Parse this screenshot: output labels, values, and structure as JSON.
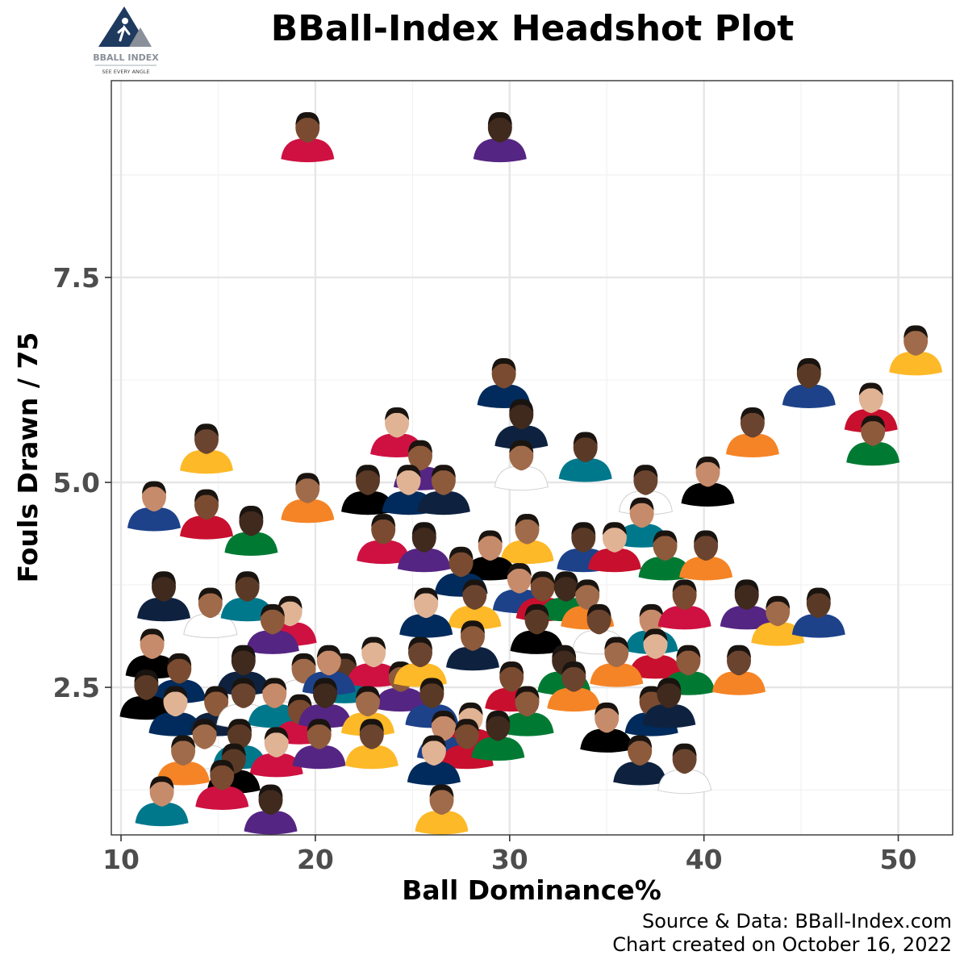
{
  "logo": {
    "name": "BBALL INDEX",
    "tagline": "SEE EVERY ANGLE"
  },
  "chart_data": {
    "type": "scatter",
    "title": "BBall-Index Headshot Plot",
    "xlabel": "Ball Dominance%",
    "ylabel": "Fouls Drawn / 75",
    "xlim": [
      9.5,
      52.8
    ],
    "ylim": [
      0.7,
      9.9
    ],
    "x_ticks": [
      10,
      20,
      30,
      40,
      50
    ],
    "y_ticks": [
      2.5,
      5.0,
      7.5
    ],
    "x_tick_labels": [
      "10",
      "20",
      "30",
      "40",
      "50"
    ],
    "y_tick_labels": [
      "2.5",
      "5.0",
      "7.5"
    ],
    "grid": true,
    "marker": "player headshot",
    "points": [
      {
        "x": 19.6,
        "y": 9.2
      },
      {
        "x": 29.5,
        "y": 9.2
      },
      {
        "x": 50.9,
        "y": 6.6
      },
      {
        "x": 45.4,
        "y": 6.2
      },
      {
        "x": 48.6,
        "y": 5.9
      },
      {
        "x": 48.7,
        "y": 5.5
      },
      {
        "x": 42.5,
        "y": 5.6
      },
      {
        "x": 40.2,
        "y": 5.0
      },
      {
        "x": 29.7,
        "y": 6.2
      },
      {
        "x": 30.6,
        "y": 5.7
      },
      {
        "x": 30.6,
        "y": 5.2
      },
      {
        "x": 33.9,
        "y": 5.3
      },
      {
        "x": 24.2,
        "y": 5.6
      },
      {
        "x": 25.4,
        "y": 5.2
      },
      {
        "x": 14.4,
        "y": 5.4
      },
      {
        "x": 11.7,
        "y": 4.7
      },
      {
        "x": 14.4,
        "y": 4.6
      },
      {
        "x": 16.7,
        "y": 4.4
      },
      {
        "x": 19.6,
        "y": 4.8
      },
      {
        "x": 22.7,
        "y": 4.9
      },
      {
        "x": 24.8,
        "y": 4.9
      },
      {
        "x": 26.6,
        "y": 4.9
      },
      {
        "x": 37.0,
        "y": 4.9
      },
      {
        "x": 36.8,
        "y": 4.5
      },
      {
        "x": 23.5,
        "y": 4.3
      },
      {
        "x": 25.6,
        "y": 4.2
      },
      {
        "x": 30.9,
        "y": 4.3
      },
      {
        "x": 33.8,
        "y": 4.2
      },
      {
        "x": 35.4,
        "y": 4.2
      },
      {
        "x": 38.0,
        "y": 4.1
      },
      {
        "x": 40.1,
        "y": 4.1
      },
      {
        "x": 29.0,
        "y": 4.1
      },
      {
        "x": 27.5,
        "y": 3.9
      },
      {
        "x": 12.2,
        "y": 3.6
      },
      {
        "x": 14.6,
        "y": 3.4
      },
      {
        "x": 16.5,
        "y": 3.6
      },
      {
        "x": 18.7,
        "y": 3.3
      },
      {
        "x": 17.8,
        "y": 3.2
      },
      {
        "x": 28.2,
        "y": 3.5
      },
      {
        "x": 30.5,
        "y": 3.7
      },
      {
        "x": 31.7,
        "y": 3.6
      },
      {
        "x": 32.9,
        "y": 3.6
      },
      {
        "x": 34.0,
        "y": 3.5
      },
      {
        "x": 31.4,
        "y": 3.2
      },
      {
        "x": 25.7,
        "y": 3.4
      },
      {
        "x": 28.1,
        "y": 3.0
      },
      {
        "x": 34.6,
        "y": 3.2
      },
      {
        "x": 37.3,
        "y": 3.2
      },
      {
        "x": 39.0,
        "y": 3.5
      },
      {
        "x": 42.2,
        "y": 3.5
      },
      {
        "x": 43.8,
        "y": 3.3
      },
      {
        "x": 45.9,
        "y": 3.4
      },
      {
        "x": 37.5,
        "y": 2.9
      },
      {
        "x": 39.2,
        "y": 2.7
      },
      {
        "x": 41.8,
        "y": 2.7
      },
      {
        "x": 11.6,
        "y": 2.9
      },
      {
        "x": 13.0,
        "y": 2.6
      },
      {
        "x": 16.3,
        "y": 2.7
      },
      {
        "x": 19.4,
        "y": 2.6
      },
      {
        "x": 21.5,
        "y": 2.6
      },
      {
        "x": 23.0,
        "y": 2.8
      },
      {
        "x": 24.4,
        "y": 2.5
      },
      {
        "x": 25.4,
        "y": 2.8
      },
      {
        "x": 20.7,
        "y": 2.7
      },
      {
        "x": 30.1,
        "y": 2.5
      },
      {
        "x": 32.8,
        "y": 2.7
      },
      {
        "x": 35.5,
        "y": 2.8
      },
      {
        "x": 11.3,
        "y": 2.4
      },
      {
        "x": 12.8,
        "y": 2.2
      },
      {
        "x": 14.9,
        "y": 2.2
      },
      {
        "x": 16.3,
        "y": 2.3
      },
      {
        "x": 17.9,
        "y": 2.3
      },
      {
        "x": 19.2,
        "y": 2.1
      },
      {
        "x": 20.5,
        "y": 2.3
      },
      {
        "x": 22.7,
        "y": 2.2
      },
      {
        "x": 26.0,
        "y": 2.3
      },
      {
        "x": 28.0,
        "y": 2.0
      },
      {
        "x": 30.9,
        "y": 2.2
      },
      {
        "x": 33.3,
        "y": 2.5
      },
      {
        "x": 35.0,
        "y": 2.0
      },
      {
        "x": 37.3,
        "y": 2.2
      },
      {
        "x": 38.2,
        "y": 2.3
      },
      {
        "x": 14.3,
        "y": 1.8
      },
      {
        "x": 16.1,
        "y": 1.8
      },
      {
        "x": 18.0,
        "y": 1.7
      },
      {
        "x": 20.2,
        "y": 1.8
      },
      {
        "x": 22.9,
        "y": 1.8
      },
      {
        "x": 26.6,
        "y": 1.9
      },
      {
        "x": 27.8,
        "y": 1.8
      },
      {
        "x": 29.4,
        "y": 1.9
      },
      {
        "x": 13.2,
        "y": 1.6
      },
      {
        "x": 15.8,
        "y": 1.5
      },
      {
        "x": 26.1,
        "y": 1.6
      },
      {
        "x": 36.7,
        "y": 1.6
      },
      {
        "x": 39.0,
        "y": 1.5
      },
      {
        "x": 12.1,
        "y": 1.1
      },
      {
        "x": 15.2,
        "y": 1.3
      },
      {
        "x": 17.7,
        "y": 1.0
      },
      {
        "x": 26.5,
        "y": 1.0
      }
    ]
  },
  "caption": {
    "source": "Source & Data: BBall-Index.com",
    "created": "Chart created on October 16, 2022"
  },
  "colors": {
    "panel_border": "#333333",
    "grid_major": "#e6e6e6",
    "grid_minor": "#f2f2f2",
    "tick_text": "#4d4d4d",
    "logo_navy": "#1f3a5f",
    "logo_gray": "#8a9099",
    "jersey_palette": [
      "#1d428a",
      "#ffffff",
      "#007a33",
      "#ce1141",
      "#000000",
      "#fdb927",
      "#0e2240",
      "#c8102e",
      "#00788c",
      "#f58426",
      "#552583",
      "#002b5c"
    ],
    "skin_palette": [
      "#5a3a26",
      "#7a4b30",
      "#8d5a3b",
      "#a06b4a",
      "#c68b6a",
      "#e0b394",
      "#3f2a1d",
      "#6b4430"
    ]
  }
}
